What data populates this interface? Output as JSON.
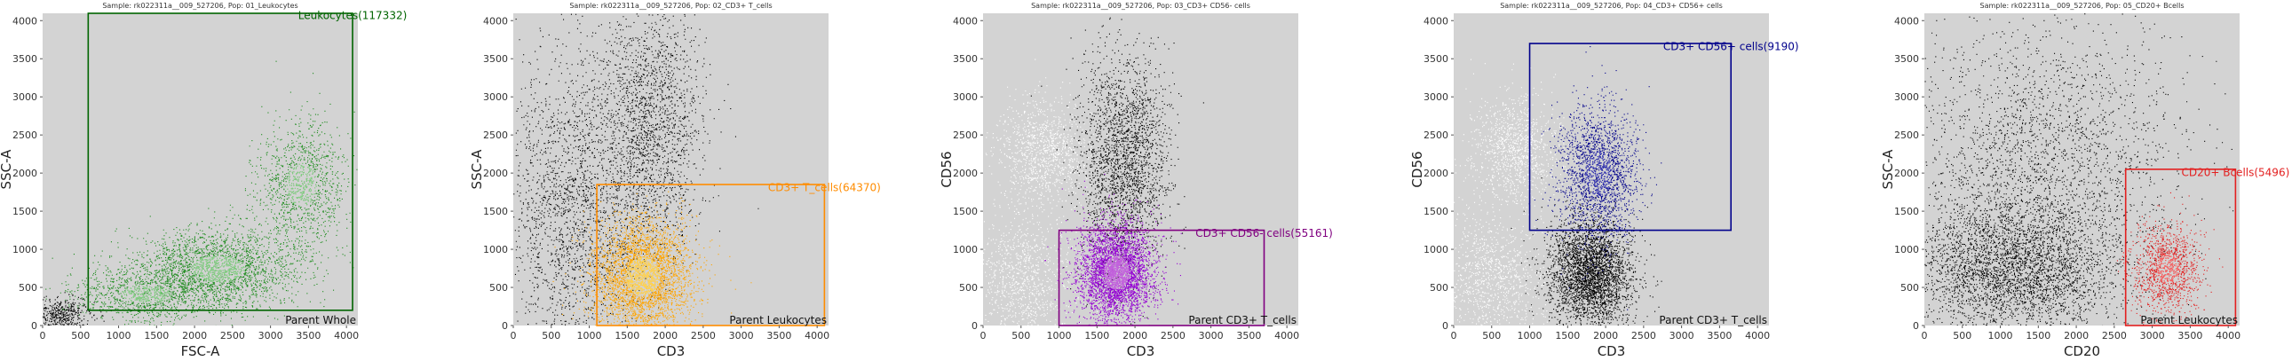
{
  "chart_data": [
    {
      "type": "scatter",
      "title": "Sample: rk022311a__009_527206, Pop: 01_Leukocytes",
      "xlabel": "FSC-A",
      "ylabel": "SSC-A",
      "xlim": [
        0,
        4150
      ],
      "ylim": [
        0,
        4096
      ],
      "xticks": [
        0,
        500,
        1000,
        1500,
        2000,
        2500,
        3000,
        3500,
        4000
      ],
      "yticks": [
        0,
        500,
        1000,
        1500,
        2000,
        2500,
        3000,
        3500,
        4000
      ],
      "grid": false,
      "background": "#d3d3d3",
      "gate": {
        "name": "Leukocytes",
        "count": 117332,
        "label": "Leukocytes(117332)",
        "x": [
          600,
          4080
        ],
        "y": [
          200,
          4096
        ],
        "color": "#006400"
      },
      "parent_label": "Parent Whole",
      "populations": [
        {
          "role": "outside",
          "color": "#000000",
          "n": 500,
          "clusters": [
            {
              "cx": 250,
              "cy": 150,
              "sx": 200,
              "sy": 120,
              "w": 1
            }
          ]
        },
        {
          "role": "gated",
          "color": "#1e8c1e",
          "density_color": "#9fe59f",
          "n": 4500,
          "clusters": [
            {
              "cx": 2300,
              "cy": 750,
              "sx": 520,
              "sy": 260,
              "w": 0.5
            },
            {
              "cx": 1350,
              "cy": 420,
              "sx": 480,
              "sy": 180,
              "w": 0.25
            },
            {
              "cx": 3400,
              "cy": 1850,
              "sx": 300,
              "sy": 420,
              "w": 0.25
            }
          ]
        }
      ]
    },
    {
      "type": "scatter",
      "title": "Sample: rk022311a__009_527206, Pop: 02_CD3+ T_cells",
      "xlabel": "CD3",
      "ylabel": "SSC-A",
      "xlim": [
        0,
        4150
      ],
      "ylim": [
        0,
        4096
      ],
      "xticks": [
        0,
        500,
        1000,
        1500,
        2000,
        2500,
        3000,
        3500,
        4000
      ],
      "yticks": [
        0,
        500,
        1000,
        1500,
        2000,
        2500,
        3000,
        3500,
        4000
      ],
      "grid": false,
      "background": "#d3d3d3",
      "gate": {
        "name": "CD3+ T_cells",
        "count": 64370,
        "label": "CD3+ T_cells(64370)",
        "x": [
          1100,
          4096
        ],
        "y": [
          0,
          1850
        ],
        "color": "#ff8c00"
      },
      "parent_label": "Parent Leukocytes",
      "populations": [
        {
          "role": "outside",
          "color": "#000000",
          "n": 4200,
          "clusters": [
            {
              "cx": 800,
              "cy": 1500,
              "sx": 500,
              "sy": 1100,
              "w": 0.55
            },
            {
              "cx": 1800,
              "cy": 2600,
              "sx": 350,
              "sy": 900,
              "w": 0.45
            }
          ]
        },
        {
          "role": "gated",
          "color": "#ffa500",
          "density_color": "#ffe066",
          "n": 3600,
          "clusters": [
            {
              "cx": 1700,
              "cy": 650,
              "sx": 330,
              "sy": 380,
              "w": 1
            }
          ]
        }
      ]
    },
    {
      "type": "scatter",
      "title": "Sample: rk022311a__009_527206, Pop: 03_CD3+ CD56- cells",
      "xlabel": "CD3",
      "ylabel": "CD56",
      "xlim": [
        0,
        4150
      ],
      "ylim": [
        0,
        4096
      ],
      "xticks": [
        0,
        500,
        1000,
        1500,
        2000,
        2500,
        3000,
        3500,
        4000
      ],
      "yticks": [
        0,
        500,
        1000,
        1500,
        2000,
        2500,
        3000,
        3500,
        4000
      ],
      "grid": false,
      "background": "#d3d3d3",
      "gate": {
        "name": "CD3+ CD56- cells",
        "count": 55161,
        "label": "CD3+ CD56- cells(55161)",
        "x": [
          1000,
          3700
        ],
        "y": [
          0,
          1250
        ],
        "color": "#800080"
      },
      "parent_label": "Parent CD3+ T_cells",
      "populations": [
        {
          "role": "outside",
          "color": "#ffffff",
          "n": 2200,
          "clusters": [
            {
              "cx": 500,
              "cy": 600,
              "sx": 350,
              "sy": 450,
              "w": 0.5
            },
            {
              "cx": 800,
              "cy": 2300,
              "sx": 300,
              "sy": 350,
              "w": 0.5
            }
          ]
        },
        {
          "role": "outside",
          "color": "#000000",
          "n": 2400,
          "clusters": [
            {
              "cx": 1850,
              "cy": 2150,
              "sx": 300,
              "sy": 700,
              "w": 1
            }
          ]
        },
        {
          "role": "gated",
          "color": "#9400d3",
          "density_color": "#d07be0",
          "n": 3800,
          "clusters": [
            {
              "cx": 1750,
              "cy": 700,
              "sx": 250,
              "sy": 330,
              "w": 1
            }
          ]
        }
      ]
    },
    {
      "type": "scatter",
      "title": "Sample: rk022311a__009_527206, Pop: 04_CD3+ CD56+ cells",
      "xlabel": "CD3",
      "ylabel": "CD56",
      "xlim": [
        0,
        4150
      ],
      "ylim": [
        0,
        4096
      ],
      "xticks": [
        0,
        500,
        1000,
        1500,
        2000,
        2500,
        3000,
        3500,
        4000
      ],
      "yticks": [
        0,
        500,
        1000,
        1500,
        2000,
        2500,
        3000,
        3500,
        4000
      ],
      "grid": false,
      "background": "#d3d3d3",
      "gate": {
        "name": "CD3+ CD56+ cells",
        "count": 9190,
        "label": "CD3+ CD56+ cells(9190)",
        "x": [
          1000,
          3650
        ],
        "y": [
          1250,
          3700
        ],
        "color": "#00008b"
      },
      "parent_label": "Parent CD3+ T_cells",
      "populations": [
        {
          "role": "outside",
          "color": "#ffffff",
          "n": 2200,
          "clusters": [
            {
              "cx": 500,
              "cy": 600,
              "sx": 350,
              "sy": 450,
              "w": 0.5
            },
            {
              "cx": 800,
              "cy": 2300,
              "sx": 300,
              "sy": 350,
              "w": 0.5
            }
          ]
        },
        {
          "role": "outside",
          "color": "#000000",
          "n": 3400,
          "clusters": [
            {
              "cx": 1800,
              "cy": 700,
              "sx": 270,
              "sy": 360,
              "w": 1
            }
          ]
        },
        {
          "role": "gated",
          "color": "#00008b",
          "density_color": "#3a3ab8",
          "n": 1900,
          "clusters": [
            {
              "cx": 1900,
              "cy": 2000,
              "sx": 260,
              "sy": 450,
              "w": 1
            }
          ]
        }
      ]
    },
    {
      "type": "scatter",
      "title": "Sample: rk022311a__009_527206, Pop: 05_CD20+ Bcells",
      "xlabel": "CD20",
      "ylabel": "SSC-A",
      "xlim": [
        0,
        4150
      ],
      "ylim": [
        0,
        4096
      ],
      "xticks": [
        0,
        500,
        1000,
        1500,
        2000,
        2500,
        3000,
        3500,
        4000
      ],
      "yticks": [
        0,
        500,
        1000,
        1500,
        2000,
        2500,
        3000,
        3500,
        4000
      ],
      "grid": false,
      "background": "#d3d3d3",
      "gate": {
        "name": "CD20+ Bcells",
        "count": 5496,
        "label": "CD20+ Bcells(5496)",
        "x": [
          2650,
          4096
        ],
        "y": [
          0,
          2050
        ],
        "color": "#e32020"
      },
      "parent_label": "Parent Leukocytes",
      "populations": [
        {
          "role": "outside",
          "color": "#000000",
          "n": 6000,
          "clusters": [
            {
              "cx": 1150,
              "cy": 750,
              "sx": 700,
              "sy": 450,
              "w": 0.6
            },
            {
              "cx": 1500,
              "cy": 2200,
              "sx": 900,
              "sy": 900,
              "w": 0.4
            }
          ]
        },
        {
          "role": "gated",
          "color": "#e32020",
          "density_color": "#ff6b6b",
          "n": 1200,
          "clusters": [
            {
              "cx": 3200,
              "cy": 750,
              "sx": 220,
              "sy": 300,
              "w": 1
            }
          ]
        }
      ]
    }
  ]
}
